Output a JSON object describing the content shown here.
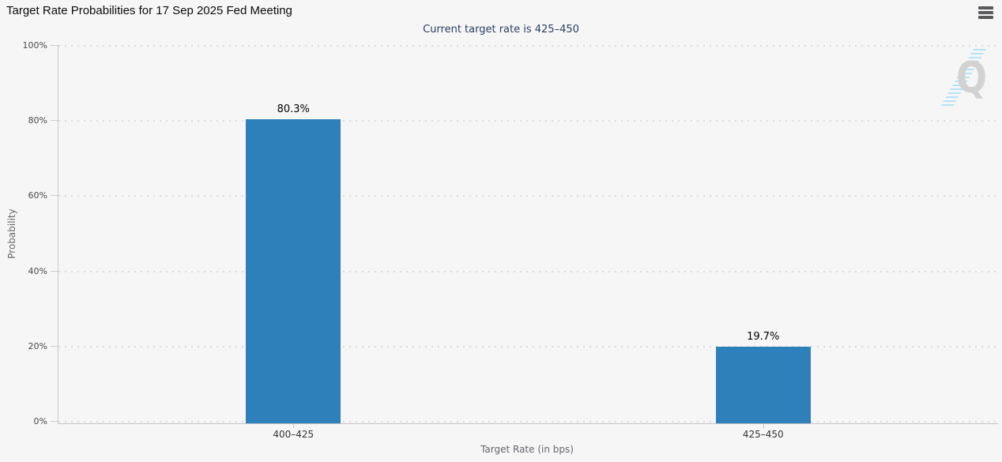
{
  "header": {
    "title": "Target Rate Probabilities for 17 Sep 2025 Fed Meeting",
    "menu_icon": "hamburger-icon"
  },
  "watermark": {
    "letter": "Q"
  },
  "colors": {
    "background": "#f6f6f6",
    "bar": "#2d80ba",
    "subtitle_text": "#2a3f5f",
    "grid": "#dcdcdc",
    "axis_line": "#c3c3c3"
  },
  "chart_data": {
    "type": "bar",
    "title": "Target Rate Probabilities for 17 Sep 2025 Fed Meeting",
    "subtitle": "Current target rate is 425–450",
    "categories": [
      "400–425",
      "425–450"
    ],
    "values": [
      80.3,
      19.7
    ],
    "data_labels": [
      "80.3%",
      "19.7%"
    ],
    "xlabel": "Target Rate (in bps)",
    "ylabel": "Probability",
    "ylim": [
      0,
      100
    ],
    "yticks": [
      0,
      20,
      40,
      60,
      80,
      100
    ],
    "ytick_labels": [
      "0%",
      "20%",
      "40%",
      "60%",
      "80%",
      "100%"
    ],
    "grid": "horizontal-dotted",
    "legend": "none",
    "bar_color": "#2d80ba"
  }
}
